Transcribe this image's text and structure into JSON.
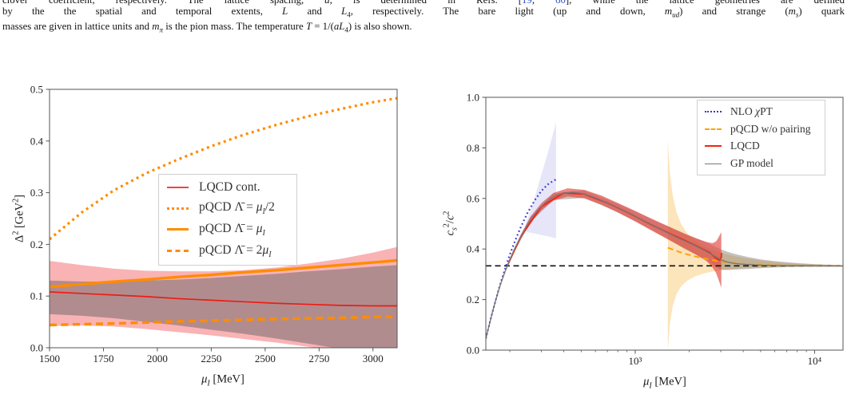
{
  "paragraph": {
    "lines_html": [
      "clover coefficient, respectively. The lattice spacing, <i>a</i>, is determined in Refs. [<span class='cite' data-name='citation-link' data-interactable='true'>19</span>, <span class='cite' data-name='citation-link' data-interactable='true'>60</span>], while the lattice geometries are defined",
      "by the the spatial and temporal extents, <i>L</i> and <i>L</i><sub>4</sub>, respectively. The bare light (up and down, <i>m<sub>ud</sub></i>) and strange (<i>m<sub>s</sub></i>) quark",
      "masses are given in lattice units and <i>m<sub>π</sub></i> is the pion mass. The temperature <i>T</i> = 1/(<i>aL</i><sub>4</sub>) is also shown."
    ]
  },
  "chart_data": [
    {
      "type": "line",
      "name": "pairing-gap-vs-mu",
      "title": "",
      "xlabel_html": "<i>μ<sub>I</sub></i> [MeV]",
      "ylabel_html": "Δ<sup>2</sup> [GeV<sup>2</sup>]",
      "x_scale": "linear",
      "xlim": [
        1500,
        3112
      ],
      "ylim": [
        0.0,
        0.5
      ],
      "grid": false,
      "box": {
        "l": 62,
        "r": 497,
        "t": 52,
        "b": 376
      },
      "spine_color": "#555555",
      "x_ticks": [
        {
          "v": 1500,
          "label": "1500"
        },
        {
          "v": 1750,
          "label": "1750"
        },
        {
          "v": 2000,
          "label": "2000"
        },
        {
          "v": 2250,
          "label": "2250"
        },
        {
          "v": 2500,
          "label": "2500"
        },
        {
          "v": 2750,
          "label": "2750"
        },
        {
          "v": 3000,
          "label": "3000"
        }
      ],
      "y_ticks": [
        {
          "v": 0.0,
          "label": "0.0"
        },
        {
          "v": 0.1,
          "label": "0.1"
        },
        {
          "v": 0.2,
          "label": "0.2"
        },
        {
          "v": 0.3,
          "label": "0.3"
        },
        {
          "v": 0.4,
          "label": "0.4"
        },
        {
          "v": 0.5,
          "label": "0.5"
        }
      ],
      "bands": [
        {
          "name": "lqcd-outer-uncertainty",
          "color": "#f9b3b5",
          "x": [
            1500,
            1650,
            1800,
            1950,
            2100,
            2250,
            2400,
            2550,
            2700,
            2850,
            3000,
            3112
          ],
          "upper": [
            0.168,
            0.16,
            0.153,
            0.149,
            0.148,
            0.148,
            0.15,
            0.155,
            0.163,
            0.172,
            0.184,
            0.195
          ],
          "lower": [
            0.042,
            0.043,
            0.041,
            0.036,
            0.03,
            0.024,
            0.017,
            0.01,
            0.002,
            -0.006,
            -0.014,
            -0.02
          ]
        },
        {
          "name": "lqcd-inner-uncertainty",
          "color": "#b18c8e",
          "x": [
            1500,
            1650,
            1800,
            1950,
            2100,
            2250,
            2400,
            2550,
            2700,
            2850,
            3000,
            3112
          ],
          "upper": [
            0.13,
            0.128,
            0.128,
            0.13,
            0.132,
            0.135,
            0.139,
            0.143,
            0.148,
            0.152,
            0.157,
            0.16
          ],
          "lower": [
            0.065,
            0.062,
            0.057,
            0.05,
            0.043,
            0.035,
            0.027,
            0.018,
            0.008,
            -0.002,
            -0.012,
            -0.02
          ]
        }
      ],
      "hlines": [],
      "series": [
        {
          "name": "pqcd-lambda-half-mu",
          "color": "#ff8c00",
          "style": "dotted",
          "width": 3.2,
          "x": [
            1500,
            1650,
            1800,
            1950,
            2100,
            2250,
            2400,
            2550,
            2700,
            2850,
            3000,
            3112
          ],
          "y": [
            0.21,
            0.262,
            0.305,
            0.338,
            0.365,
            0.39,
            0.412,
            0.431,
            0.448,
            0.462,
            0.475,
            0.483
          ]
        },
        {
          "name": "pqcd-lambda-mu",
          "color": "#ff8c00",
          "style": "solid",
          "width": 3.4,
          "x": [
            1500,
            1650,
            1800,
            1950,
            2100,
            2250,
            2400,
            2550,
            2700,
            2850,
            3000,
            3112
          ],
          "y": [
            0.118,
            0.123,
            0.128,
            0.132,
            0.137,
            0.141,
            0.146,
            0.15,
            0.155,
            0.16,
            0.165,
            0.169
          ]
        },
        {
          "name": "lqcd-continuum",
          "color": "#ee1c13",
          "style": "solid",
          "width": 1.7,
          "x": [
            1500,
            1650,
            1800,
            1950,
            2100,
            2250,
            2400,
            2550,
            2700,
            2850,
            3000,
            3112
          ],
          "y": [
            0.108,
            0.105,
            0.102,
            0.099,
            0.095,
            0.092,
            0.089,
            0.086,
            0.084,
            0.082,
            0.081,
            0.081
          ]
        },
        {
          "name": "pqcd-lambda-2mu",
          "color": "#ff8c00",
          "style": "dashed",
          "width": 3.4,
          "x": [
            1500,
            1650,
            1800,
            1950,
            2100,
            2250,
            2400,
            2550,
            2700,
            2850,
            3000,
            3112
          ],
          "y": [
            0.044,
            0.0455,
            0.047,
            0.049,
            0.051,
            0.0525,
            0.054,
            0.0555,
            0.057,
            0.058,
            0.0595,
            0.06
          ]
        }
      ],
      "legend": {
        "position": "center",
        "items": [
          {
            "label": "LQCD cont.",
            "color": "#f0453c",
            "style": "solid",
            "weight": 2.4
          },
          {
            "label": "pQCD Λ̄ = <i>μ<sub>I</sub></i>/2",
            "color": "#ff8c00",
            "style": "dotted",
            "weight": 3.4
          },
          {
            "label": "pQCD Λ̄ = <i>μ<sub>I</sub></i>",
            "color": "#ff8c00",
            "style": "solid",
            "weight": 3.6
          },
          {
            "label": "pQCD Λ̄ = 2<i>μ<sub>I</sub></i>",
            "color": "#ff8c00",
            "style": "dashed",
            "weight": 3.6
          }
        ]
      }
    },
    {
      "type": "line",
      "name": "sound-speed-vs-mu",
      "title": "",
      "xlabel_html": "<i>μ<sub>I</sub></i> [MeV]",
      "ylabel_html": "<i>c<sub>s</sub></i><sup>2</sup>/<i>c</i><sup>2</sup>",
      "x_scale": "log",
      "xlim": [
        147,
        14400
      ],
      "ylim": [
        0.0,
        1.0
      ],
      "grid": false,
      "box": {
        "l": 78,
        "r": 525,
        "t": 62,
        "b": 379
      },
      "spine_color": "#555555",
      "x_ticks": [
        {
          "v": 1000,
          "label": "10³"
        },
        {
          "v": 10000,
          "label": "10⁴"
        }
      ],
      "x_minor": [
        200,
        300,
        400,
        500,
        600,
        700,
        800,
        900,
        2000,
        3000,
        4000,
        5000,
        6000,
        7000,
        8000,
        9000
      ],
      "y_ticks": [
        {
          "v": 0.0,
          "label": "0.0"
        },
        {
          "v": 0.2,
          "label": "0.2"
        },
        {
          "v": 0.4,
          "label": "0.4"
        },
        {
          "v": 0.6,
          "label": "0.6"
        },
        {
          "v": 0.8,
          "label": "0.8"
        },
        {
          "v": 1.0,
          "label": "1.0"
        }
      ],
      "bands": [
        {
          "name": "nlo-chipt-uncertainty",
          "color": "#e6e6f8",
          "x": [
            246,
            262,
            280,
            300,
            322,
            345,
            362
          ],
          "upper": [
            0.5,
            0.556,
            0.622,
            0.695,
            0.768,
            0.845,
            0.9
          ],
          "lower": [
            0.468,
            0.464,
            0.46,
            0.455,
            0.451,
            0.446,
            0.442
          ]
        },
        {
          "name": "pqcd-pairing-uncertainty",
          "color": "#fce4bb",
          "x": [
            1520,
            1560,
            1620,
            1700,
            1800,
            1950,
            2150,
            2400,
            2700,
            3100,
            3600,
            4300,
            5300,
            6800,
            9000,
            12000,
            14400
          ],
          "upper": [
            0.83,
            0.7,
            0.61,
            0.545,
            0.5,
            0.462,
            0.434,
            0.412,
            0.396,
            0.382,
            0.371,
            0.361,
            0.352,
            0.345,
            0.34,
            0.337,
            0.336
          ],
          "lower": [
            0.0,
            0.105,
            0.175,
            0.222,
            0.252,
            0.275,
            0.292,
            0.303,
            0.311,
            0.317,
            0.322,
            0.325,
            0.328,
            0.33,
            0.331,
            0.331,
            0.332
          ]
        },
        {
          "name": "gp-model-uncertainty",
          "color": "rgba(115,108,95,0.42)",
          "x": [
            200,
            260,
            350,
            520,
            800,
            1250,
            1900,
            2500,
            2820,
            3020,
            3300,
            3700,
            4200,
            5000,
            6000,
            7500,
            9500,
            12000,
            14400
          ],
          "upper": [
            0.362,
            0.525,
            0.62,
            0.632,
            0.58,
            0.516,
            0.458,
            0.425,
            0.408,
            0.398,
            0.388,
            0.378,
            0.369,
            0.359,
            0.352,
            0.346,
            0.341,
            0.338,
            0.336
          ],
          "lower": [
            0.354,
            0.505,
            0.594,
            0.602,
            0.546,
            0.474,
            0.402,
            0.355,
            0.328,
            0.318,
            0.317,
            0.319,
            0.321,
            0.324,
            0.327,
            0.329,
            0.33,
            0.331,
            0.331
          ]
        },
        {
          "name": "lqcd-uncertainty",
          "color": "rgba(230,75,68,0.68)",
          "x": [
            200,
            230,
            260,
            300,
            350,
            420,
            520,
            650,
            800,
            1000,
            1250,
            1550,
            1900,
            2200,
            2500,
            2700,
            2820,
            2900,
            2960,
            3020
          ],
          "upper": [
            0.363,
            0.457,
            0.527,
            0.582,
            0.622,
            0.64,
            0.634,
            0.611,
            0.582,
            0.551,
            0.518,
            0.488,
            0.46,
            0.442,
            0.428,
            0.423,
            0.43,
            0.443,
            0.455,
            0.467
          ],
          "lower": [
            0.353,
            0.439,
            0.503,
            0.554,
            0.591,
            0.608,
            0.6,
            0.575,
            0.544,
            0.509,
            0.471,
            0.435,
            0.4,
            0.376,
            0.352,
            0.327,
            0.306,
            0.283,
            0.265,
            0.247
          ]
        }
      ],
      "hlines": [
        {
          "name": "conformal-limit",
          "y": 0.3333,
          "color": "#111111",
          "style": "dashed",
          "width": 1.6
        }
      ],
      "series": [
        {
          "name": "nlo-chipt",
          "color": "#3838cf",
          "style": "dotted",
          "width": 2.2,
          "x": [
            142,
            148,
            156,
            165,
            175,
            187,
            200,
            215,
            232,
            252,
            275,
            300,
            325,
            350,
            362
          ],
          "y": [
            0.0,
            0.055,
            0.12,
            0.185,
            0.25,
            0.315,
            0.378,
            0.436,
            0.492,
            0.545,
            0.592,
            0.63,
            0.655,
            0.67,
            0.675
          ]
        },
        {
          "name": "pqcd-wo-pairing",
          "color": "#ffa10a",
          "style": "dashed",
          "width": 2.0,
          "x": [
            1520,
            1700,
            1900,
            2150,
            2450,
            2800,
            3200,
            3700,
            4300,
            5200,
            6500,
            8200,
            10500,
            14400
          ],
          "y": [
            0.405,
            0.392,
            0.381,
            0.371,
            0.362,
            0.354,
            0.348,
            0.343,
            0.34,
            0.337,
            0.335,
            0.334,
            0.334,
            0.333
          ]
        },
        {
          "name": "lqcd",
          "color": "#fb1f0e",
          "style": "solid",
          "width": 1.8,
          "x": [
            195,
            230,
            300,
            400,
            520,
            700,
            900,
            1200,
            1550,
            1900,
            2150,
            2400,
            2600,
            2750,
            2870,
            2960,
            3020,
            3030
          ],
          "y": [
            0.338,
            0.448,
            0.568,
            0.622,
            0.617,
            0.582,
            0.546,
            0.5,
            0.462,
            0.433,
            0.415,
            0.398,
            0.386,
            0.371,
            0.36,
            0.356,
            0.368,
            0.385
          ]
        },
        {
          "name": "gp-model",
          "color": "#787878",
          "style": "solid",
          "width": 1.4,
          "x": [
            142,
            147,
            153,
            160,
            168,
            177,
            188,
            200,
            214,
            230,
            248,
            268,
            290,
            315,
            342,
            372,
            405,
            450,
            500,
            560,
            630,
            710,
            800,
            900,
            1010,
            1140,
            1290,
            1460,
            1650,
            1870,
            2100,
            2350,
            2600,
            2820,
            3000,
            3200,
            3500,
            3900,
            4400,
            5100,
            6000,
            7200,
            8800,
            11000,
            14400
          ],
          "y": [
            0.0,
            0.045,
            0.095,
            0.15,
            0.205,
            0.258,
            0.31,
            0.358,
            0.405,
            0.448,
            0.49,
            0.527,
            0.558,
            0.583,
            0.602,
            0.615,
            0.622,
            0.625,
            0.62,
            0.61,
            0.596,
            0.58,
            0.563,
            0.546,
            0.528,
            0.509,
            0.49,
            0.47,
            0.451,
            0.433,
            0.417,
            0.4,
            0.383,
            0.369,
            0.358,
            0.35,
            0.344,
            0.34,
            0.338,
            0.336,
            0.335,
            0.334,
            0.334,
            0.333,
            0.333
          ]
        }
      ],
      "legend": {
        "position": "upper right",
        "items": [
          {
            "label": "NLO <i>χ</i>PT",
            "color": "#3838cf",
            "style": "dotted",
            "weight": 2.2
          },
          {
            "label": "pQCD w/o pairing",
            "color": "#ffa10a",
            "style": "dashed",
            "weight": 2.2
          },
          {
            "label": "LQCD",
            "color": "#fb1f0e",
            "style": "solid",
            "weight": 2.2
          },
          {
            "label": "GP model",
            "color": "#787878",
            "style": "solid",
            "weight": 1.8
          }
        ]
      }
    }
  ]
}
